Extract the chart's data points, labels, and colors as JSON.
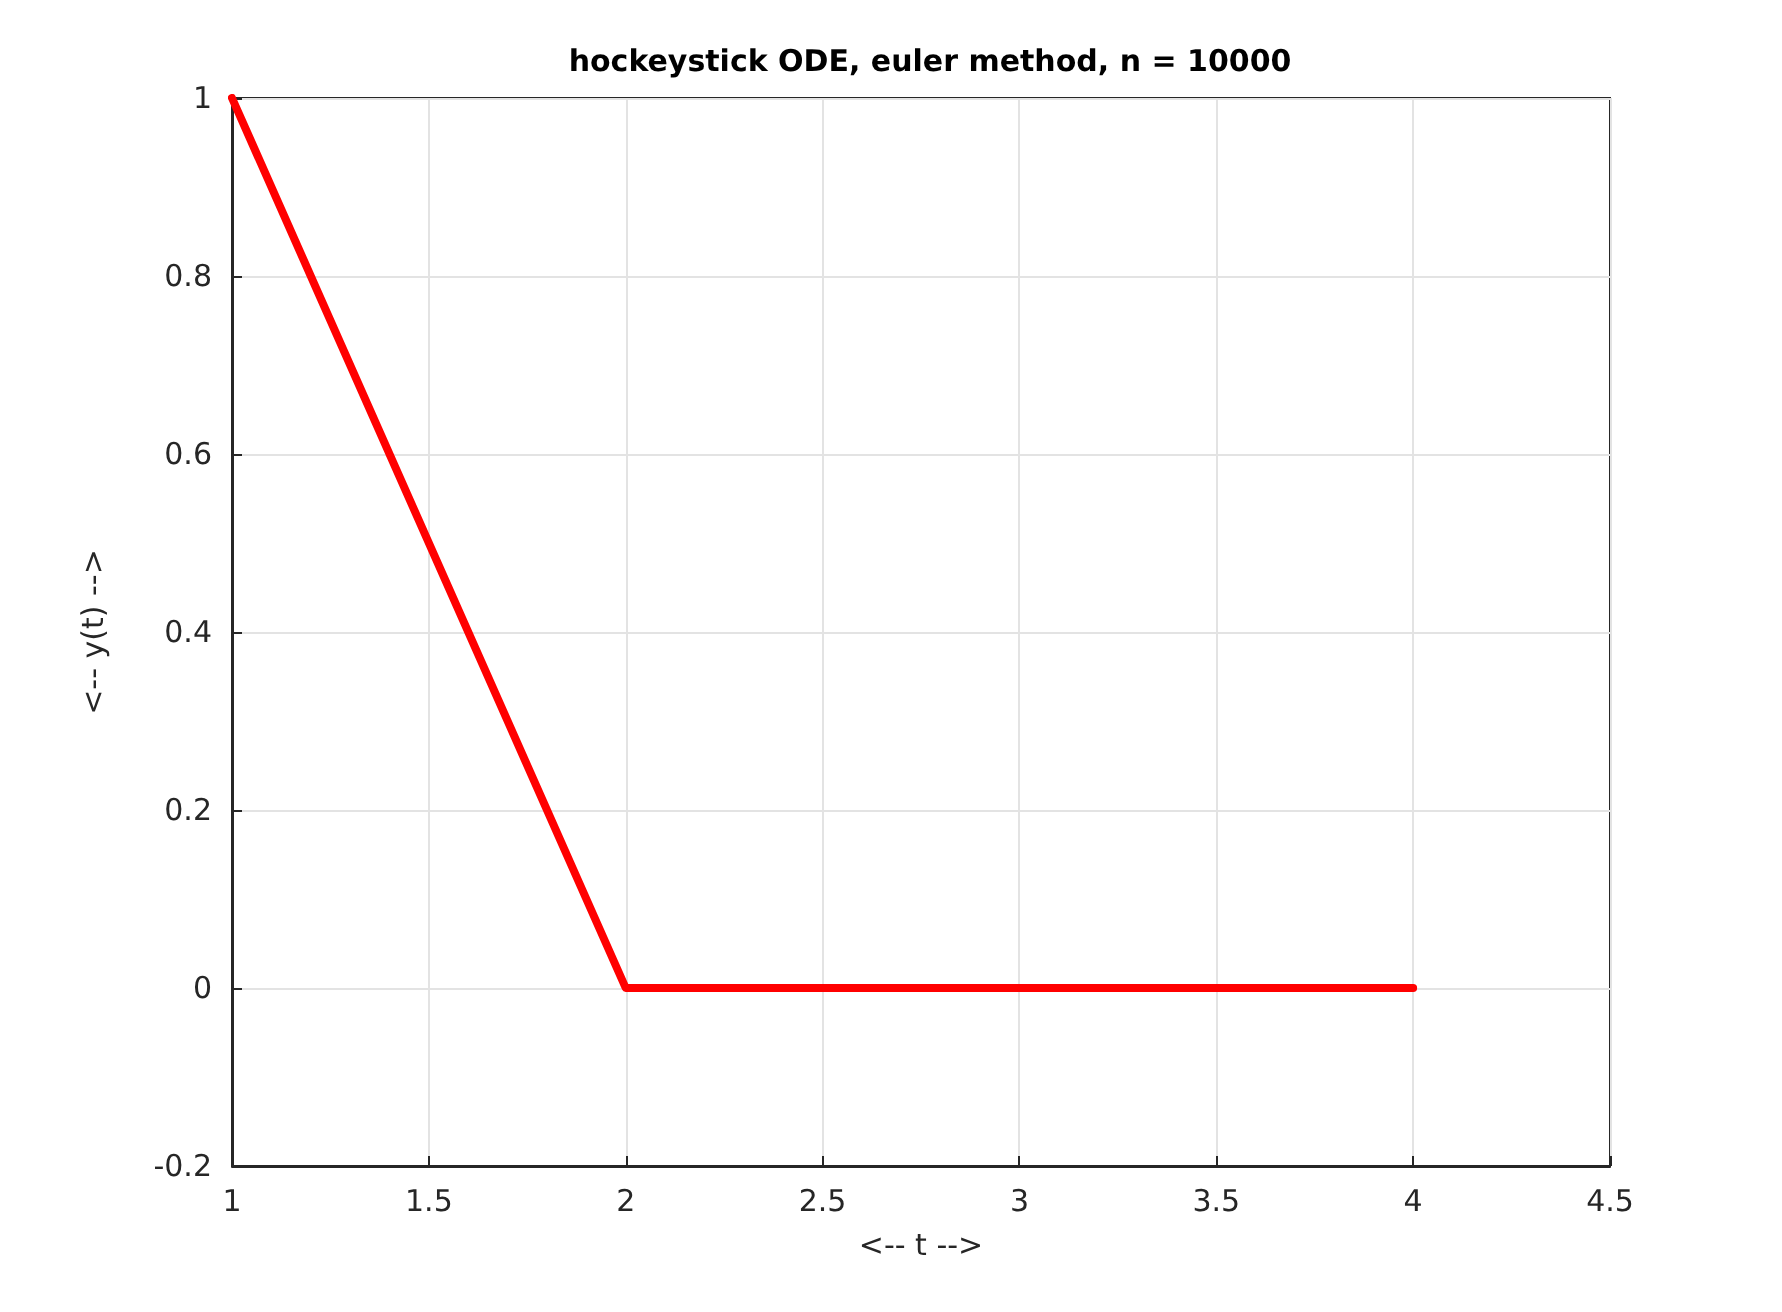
{
  "chart_data": {
    "type": "line",
    "title": "hockeystick ODE, euler method, n = 10000",
    "xlabel": "<-- t -->",
    "ylabel": "<-- y(t) -->",
    "x": [
      1,
      2,
      4
    ],
    "series": [
      {
        "color": "#ff0000",
        "values": [
          1,
          0,
          0
        ]
      }
    ],
    "xlim": [
      1,
      4.5
    ],
    "xticks": [
      1,
      1.5,
      2,
      2.5,
      3,
      3.5,
      4,
      4.5
    ],
    "ylim": [
      -0.2,
      1
    ],
    "yticks": [
      -0.2,
      0,
      0.2,
      0.4,
      0.6,
      0.8,
      1
    ],
    "grid": true,
    "marker": "none",
    "line_style": "solid"
  }
}
